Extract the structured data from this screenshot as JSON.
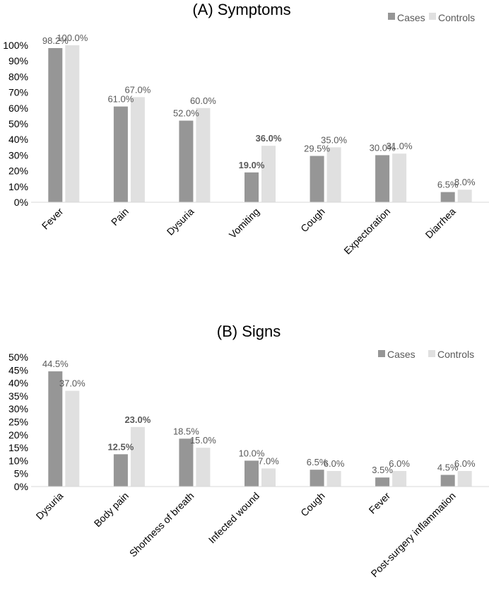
{
  "chart_data": [
    {
      "type": "bar",
      "title": "(A) Symptoms",
      "categories": [
        "Fever",
        "Pain",
        "Dysuria",
        "Vomiting",
        "Cough",
        "Expectoration",
        "Diarrhea"
      ],
      "series": [
        {
          "name": "Cases",
          "color": "#969696",
          "values": [
            98.2,
            61.0,
            52.0,
            19.0,
            29.5,
            30.0,
            6.5
          ],
          "labels": [
            "98.2%",
            "61.0%",
            "52.0%",
            "19.0%",
            "29.5%",
            "30.0%",
            "6.5%"
          ],
          "bold": [
            false,
            false,
            false,
            true,
            false,
            false,
            false
          ]
        },
        {
          "name": "Controls",
          "color": "#e0e0e0",
          "values": [
            100.0,
            67.0,
            60.0,
            36.0,
            35.0,
            31.0,
            8.0
          ],
          "labels": [
            "100.0%",
            "67.0%",
            "60.0%",
            "36.0%",
            "35.0%",
            "31.0%",
            "8.0%"
          ],
          "bold": [
            false,
            false,
            false,
            true,
            false,
            false,
            false
          ]
        }
      ],
      "ylim": [
        0,
        100
      ],
      "yticks": [
        "0%",
        "10%",
        "20%",
        "30%",
        "40%",
        "50%",
        "60%",
        "70%",
        "80%",
        "90%",
        "100%"
      ],
      "legend": "top-right",
      "grid": false
    },
    {
      "type": "bar",
      "title": "(B) Signs",
      "categories": [
        "Dysuria",
        "Body pain",
        "Shortness of breath",
        "Infected wound",
        "Cough",
        "Fever",
        "Post-surgery inflammation"
      ],
      "series": [
        {
          "name": "Cases",
          "color": "#969696",
          "values": [
            44.5,
            12.5,
            18.5,
            10.0,
            6.5,
            3.5,
            4.5
          ],
          "labels": [
            "44.5%",
            "12.5%",
            "18.5%",
            "10.0%",
            "6.5%",
            "3.5%",
            "4.5%"
          ],
          "bold": [
            false,
            true,
            false,
            false,
            false,
            false,
            false
          ]
        },
        {
          "name": "Controls",
          "color": "#e0e0e0",
          "values": [
            37.0,
            23.0,
            15.0,
            7.0,
            6.0,
            6.0,
            6.0
          ],
          "labels": [
            "37.0%",
            "23.0%",
            "15.0%",
            "7.0%",
            "6.0%",
            "6.0%",
            "6.0%"
          ],
          "bold": [
            false,
            true,
            false,
            false,
            false,
            false,
            false
          ]
        }
      ],
      "ylim": [
        0,
        50
      ],
      "yticks": [
        "0%",
        "5%",
        "10%",
        "15%",
        "20%",
        "25%",
        "30%",
        "35%",
        "40%",
        "45%",
        "50%"
      ],
      "legend": "top-right",
      "grid": false
    }
  ]
}
